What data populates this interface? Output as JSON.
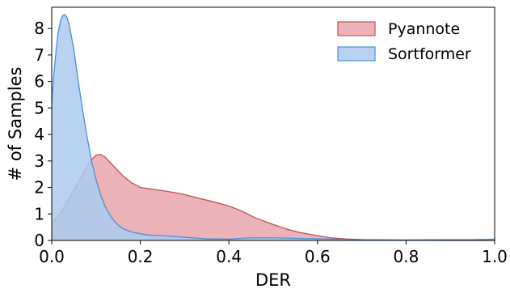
{
  "chart_data": {
    "type": "area",
    "title": "",
    "xlabel": "DER",
    "ylabel": "# of Samples",
    "xlim": [
      0.0,
      1.0
    ],
    "ylim": [
      0,
      8.8
    ],
    "xticks": [
      0.0,
      0.2,
      0.4,
      0.6,
      0.8,
      1.0
    ],
    "xtick_labels": [
      "0.0",
      "0.2",
      "0.4",
      "0.6",
      "0.8",
      "1.0"
    ],
    "yticks": [
      0,
      1,
      2,
      3,
      4,
      5,
      6,
      7,
      8
    ],
    "ytick_labels": [
      "0",
      "1",
      "2",
      "3",
      "4",
      "5",
      "6",
      "7",
      "8"
    ],
    "grid": false,
    "legend_position": "top-right",
    "series": [
      {
        "name": "Pyannote",
        "fill_color": "#e8a6ab",
        "line_color": "#c44e52",
        "x": [
          0.0,
          0.02,
          0.04,
          0.06,
          0.08,
          0.09,
          0.1,
          0.11,
          0.12,
          0.14,
          0.16,
          0.18,
          0.2,
          0.22,
          0.25,
          0.28,
          0.3,
          0.33,
          0.36,
          0.4,
          0.43,
          0.46,
          0.5,
          0.53,
          0.56,
          0.6,
          0.63,
          0.66,
          0.7,
          0.75,
          0.8,
          0.9,
          1.0
        ],
        "y": [
          0.65,
          1.05,
          1.6,
          2.2,
          2.8,
          3.05,
          3.22,
          3.25,
          3.15,
          2.8,
          2.45,
          2.18,
          2.0,
          1.95,
          1.88,
          1.8,
          1.73,
          1.6,
          1.48,
          1.3,
          1.1,
          0.85,
          0.6,
          0.43,
          0.3,
          0.18,
          0.1,
          0.06,
          0.03,
          0.02,
          0.01,
          0.0,
          0.0
        ]
      },
      {
        "name": "Sortformer",
        "fill_color": "#aacbef",
        "line_color": "#4a90d9",
        "x": [
          0.0,
          0.005,
          0.01,
          0.015,
          0.02,
          0.025,
          0.03,
          0.035,
          0.04,
          0.05,
          0.06,
          0.07,
          0.08,
          0.09,
          0.1,
          0.11,
          0.12,
          0.13,
          0.14,
          0.15,
          0.16,
          0.18,
          0.2,
          0.22,
          0.25,
          0.3,
          0.35,
          0.4,
          0.45,
          0.5,
          0.6,
          0.7,
          0.8,
          0.9,
          0.95,
          1.0
        ],
        "y": [
          5.2,
          6.3,
          7.2,
          7.9,
          8.3,
          8.5,
          8.52,
          8.4,
          8.1,
          7.2,
          6.0,
          4.9,
          3.9,
          3.0,
          2.3,
          1.75,
          1.3,
          1.0,
          0.75,
          0.58,
          0.45,
          0.32,
          0.25,
          0.2,
          0.18,
          0.12,
          0.06,
          0.05,
          0.1,
          0.1,
          0.06,
          0.03,
          0.02,
          0.03,
          0.03,
          0.05
        ]
      }
    ]
  }
}
